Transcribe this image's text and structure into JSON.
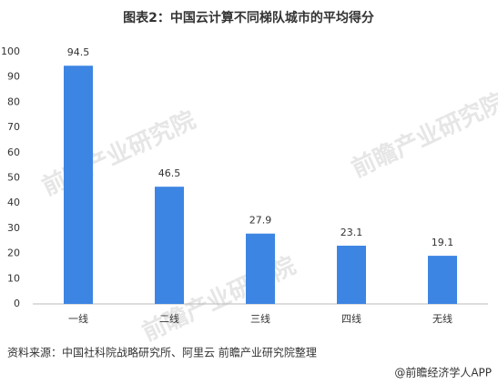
{
  "chart_data": {
    "type": "bar",
    "title": "图表2：中国云计算不同梯队城市的平均得分",
    "categories": [
      "一线",
      "二线",
      "三线",
      "四线",
      "无线"
    ],
    "values": [
      94.5,
      46.5,
      27.9,
      23.1,
      19.1
    ],
    "color": "#3d85e3",
    "ylim": [
      0,
      100
    ],
    "yticks": [
      0,
      10,
      20,
      30,
      40,
      50,
      60,
      70,
      80,
      90,
      100
    ],
    "grid": false,
    "source": "资料来源：中国社科院战略研究所、阿里云  前瞻产业研究院整理",
    "footer": "@前瞻经济学人APP",
    "watermark": "前瞻产业研究院"
  }
}
